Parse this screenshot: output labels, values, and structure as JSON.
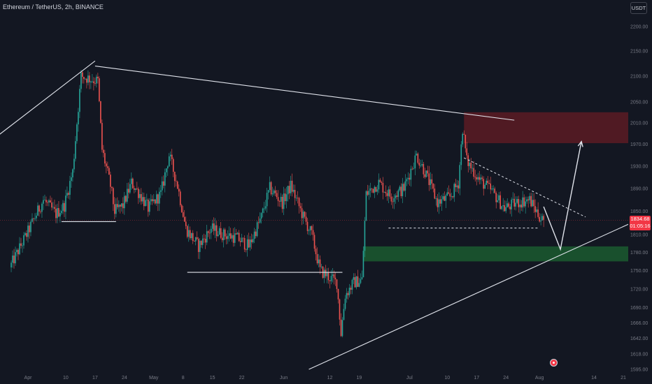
{
  "header": {
    "symbol_line": "Ethereum / TetherUS, 2h, BINANCE",
    "currency": "USDT"
  },
  "price_tag": {
    "price": "1834.68",
    "countdown": "01:05:16",
    "color": "#f23645"
  },
  "event_icon": "earnings-event-icon",
  "colors": {
    "background": "#131722",
    "up": "#26a69a",
    "down": "#ef5350",
    "drawing": "#e0e3eb",
    "resistance_zone": "#5c1b23",
    "support_zone": "#1b5b2f",
    "axis_text": "#787b86"
  },
  "chart_data": {
    "type": "candlestick",
    "symbol": "ETH/USDT",
    "interval": "2h",
    "exchange": "BINANCE",
    "y_axis": {
      "ticks": [
        "2200.00",
        "2150.00",
        "2100.00",
        "2050.00",
        "2010.00",
        "1970.00",
        "1930.00",
        "1890.00",
        "1850.00",
        "1810.00",
        "1780.00",
        "1750.00",
        "1720.00",
        "1690.00",
        "1666.00",
        "1642.00",
        "1618.00",
        "1595.00"
      ],
      "position": "right",
      "scale": "log"
    },
    "x_axis": {
      "ticks": [
        "Apr",
        "10",
        "17",
        "24",
        "May",
        "8",
        "15",
        "22",
        "Jun",
        "12",
        "19",
        "Jul",
        "10",
        "17",
        "24",
        "Aug",
        "14",
        "21"
      ]
    },
    "grid": false,
    "last_price": 1834.68,
    "price_path": [
      {
        "date": "Mar 28",
        "price": 1755
      },
      {
        "date": "Apr 1",
        "price": 1810
      },
      {
        "date": "Apr 5",
        "price": 1870
      },
      {
        "date": "Apr 8",
        "price": 1845
      },
      {
        "date": "Apr 10",
        "price": 1860
      },
      {
        "date": "Apr 12",
        "price": 1920
      },
      {
        "date": "Apr 14",
        "price": 2100
      },
      {
        "date": "Apr 16",
        "price": 2095
      },
      {
        "date": "Apr 18",
        "price": 2090
      },
      {
        "date": "Apr 19",
        "price": 1960
      },
      {
        "date": "Apr 21",
        "price": 1895
      },
      {
        "date": "Apr 22",
        "price": 1850
      },
      {
        "date": "Apr 24",
        "price": 1860
      },
      {
        "date": "Apr 26",
        "price": 1900
      },
      {
        "date": "Apr 28",
        "price": 1880
      },
      {
        "date": "Apr 30",
        "price": 1855
      },
      {
        "date": "May 3",
        "price": 1880
      },
      {
        "date": "May 5",
        "price": 1950
      },
      {
        "date": "May 7",
        "price": 1895
      },
      {
        "date": "May 9",
        "price": 1820
      },
      {
        "date": "May 12",
        "price": 1790
      },
      {
        "date": "May 15",
        "price": 1820
      },
      {
        "date": "May 18",
        "price": 1810
      },
      {
        "date": "May 21",
        "price": 1805
      },
      {
        "date": "May 24",
        "price": 1790
      },
      {
        "date": "May 27",
        "price": 1840
      },
      {
        "date": "May 29",
        "price": 1890
      },
      {
        "date": "Jun 1",
        "price": 1865
      },
      {
        "date": "Jun 3",
        "price": 1895
      },
      {
        "date": "Jun 6",
        "price": 1840
      },
      {
        "date": "Jun 8",
        "price": 1810
      },
      {
        "date": "Jun 10",
        "price": 1750
      },
      {
        "date": "Jun 12",
        "price": 1740
      },
      {
        "date": "Jun 14",
        "price": 1730
      },
      {
        "date": "Jun 15",
        "price": 1650
      },
      {
        "date": "Jun 16",
        "price": 1710
      },
      {
        "date": "Jun 18",
        "price": 1730
      },
      {
        "date": "Jun 20",
        "price": 1735
      },
      {
        "date": "Jun 21",
        "price": 1880
      },
      {
        "date": "Jun 24",
        "price": 1900
      },
      {
        "date": "Jun 27",
        "price": 1875
      },
      {
        "date": "Jun 30",
        "price": 1890
      },
      {
        "date": "Jul 3",
        "price": 1950
      },
      {
        "date": "Jul 5",
        "price": 1920
      },
      {
        "date": "Jul 8",
        "price": 1865
      },
      {
        "date": "Jul 11",
        "price": 1875
      },
      {
        "date": "Jul 13",
        "price": 1900
      },
      {
        "date": "Jul 14",
        "price": 2000
      },
      {
        "date": "Jul 15",
        "price": 1940
      },
      {
        "date": "Jul 18",
        "price": 1905
      },
      {
        "date": "Jul 21",
        "price": 1885
      },
      {
        "date": "Jul 24",
        "price": 1855
      },
      {
        "date": "Jul 27",
        "price": 1865
      },
      {
        "date": "Jul 30",
        "price": 1870
      },
      {
        "date": "Aug 1",
        "price": 1845
      },
      {
        "date": "Aug 2",
        "price": 1834.68
      }
    ],
    "resistance_zone": [
      1972,
      2030
    ],
    "support_zone": [
      1765,
      1790
    ],
    "annotations": [
      {
        "type": "trendline",
        "from": {
          "date": "Apr 17",
          "price": 2120
        },
        "to": {
          "date": "Jul 26",
          "price": 2015
        }
      },
      {
        "type": "trendline",
        "from": {
          "date": "Mar 23",
          "price": 1975
        },
        "to": {
          "date": "Apr 17",
          "price": 2130
        }
      },
      {
        "type": "trendline",
        "from": {
          "date": "Jun 7",
          "price": 1595
        },
        "to": {
          "date": "Aug 26",
          "price": 1840
        }
      },
      {
        "type": "dashed_trendline",
        "from": {
          "date": "Jul 14",
          "price": 1945
        },
        "to": {
          "date": "Aug 12",
          "price": 1840
        }
      },
      {
        "type": "dashed_horizontal",
        "price": 1821,
        "from": "Jun 26",
        "to": "Aug 1"
      },
      {
        "type": "horizontal",
        "price": 1832,
        "from": "Apr 9",
        "to": "Apr 22"
      },
      {
        "type": "horizontal",
        "price": 1747,
        "from": "May 9",
        "to": "Jun 15"
      },
      {
        "type": "forecast_path",
        "points": [
          {
            "date": "Aug 2",
            "price": 1858
          },
          {
            "date": "Aug 6",
            "price": 1785
          },
          {
            "date": "Aug 11",
            "price": 1975
          }
        ]
      }
    ]
  }
}
